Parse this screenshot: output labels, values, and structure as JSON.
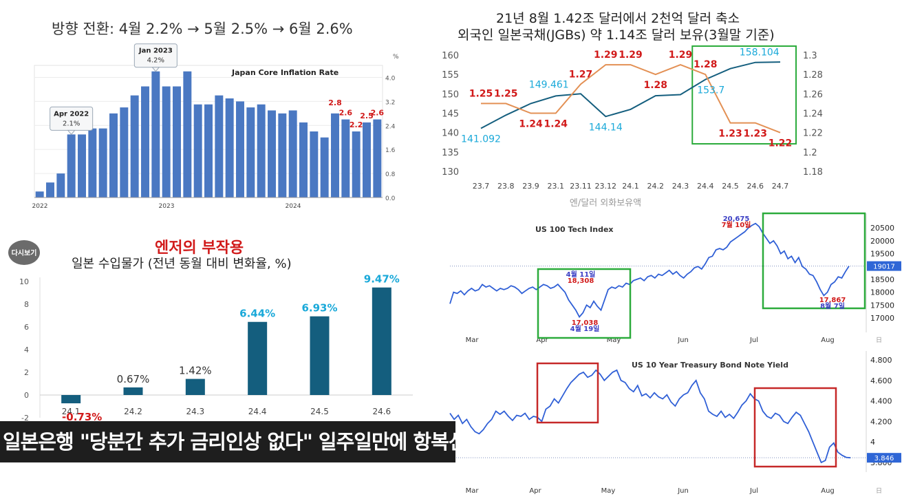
{
  "banner": {
    "text": "일본은행 \"당분간 추가 금리인상 없다\" 일주일만에 항복선언"
  },
  "logo": {
    "text": "다시보기"
  },
  "colors": {
    "bar_blue": "#4a78c2",
    "teal": "#145e7e",
    "cyan": "#1aa9d9",
    "red": "#d11a1a",
    "orange": "#e39054",
    "line_blue": "#2f5fd6",
    "green_box": "#2bab3b",
    "red_box": "#c62828"
  },
  "chart_data": [
    {
      "id": "inflation",
      "type": "bar",
      "header": "방향 전환: 4월 2.2% → 5월 2.5% → 6월 2.6%",
      "title": "Japan Core Inflation Rate",
      "unit": "%",
      "x_ticks": [
        "2022",
        "2023",
        "2024"
      ],
      "y_ticks": [
        "0.0",
        "0.8",
        "1.6",
        "2.4",
        "3.2",
        "4.0"
      ],
      "ylim": [
        0,
        4.4
      ],
      "values": [
        0.2,
        0.5,
        0.8,
        2.1,
        2.1,
        2.3,
        2.3,
        2.8,
        3.0,
        3.4,
        3.7,
        4.2,
        3.7,
        3.7,
        4.2,
        3.1,
        3.1,
        3.4,
        3.3,
        3.2,
        3.0,
        3.1,
        2.9,
        2.8,
        2.9,
        2.5,
        2.2,
        2.0,
        2.8,
        2.6,
        2.2,
        2.5,
        2.6
      ],
      "value_labels": [
        {
          "index": 28,
          "text": "2.8"
        },
        {
          "index": 29,
          "text": "2.6"
        },
        {
          "index": 30,
          "text": "2.2"
        },
        {
          "index": 31,
          "text": "2.5"
        },
        {
          "index": 32,
          "text": "2.6"
        }
      ],
      "callouts": [
        {
          "index": 3,
          "title": "Apr 2022",
          "value": "2.1%"
        },
        {
          "index": 11,
          "title": "Jan 2023",
          "value": "4.2%"
        }
      ]
    },
    {
      "id": "jgb",
      "type": "line",
      "title_lines": [
        "21년 8월 1.42조 달러에서 2천억 달러 축소",
        "외국인 일본국채(JGBs) 약 1.14조 달러 보유(3월말 기준)"
      ],
      "categories": [
        "23.7",
        "23.8",
        "23.9",
        "23.1",
        "23.11",
        "23.12",
        "24.1",
        "24.2",
        "24.3",
        "24.4",
        "24.5",
        "24.6",
        "24.7"
      ],
      "y_ticks_left": [
        "130",
        "135",
        "140",
        "145",
        "150",
        "155",
        "160"
      ],
      "ylim_left": [
        130,
        160
      ],
      "y_ticks_right": [
        "1.18",
        "1.2",
        "1.22",
        "1.24",
        "1.26",
        "1.28",
        "1.3"
      ],
      "ylim_right": [
        1.18,
        1.3
      ],
      "legend_text": "엔/달러  외화보유액",
      "series": [
        {
          "axis": "left",
          "color": "#145e7e",
          "values": [
            141.092,
            144.5,
            147.5,
            149.461,
            150.0,
            144.14,
            146.0,
            149.5,
            149.8,
            153.7,
            156.5,
            158.104,
            158.2
          ]
        },
        {
          "axis": "right",
          "color": "#e39054",
          "values": [
            1.25,
            1.25,
            1.24,
            1.24,
            1.27,
            1.29,
            1.29,
            1.28,
            1.29,
            1.28,
            1.23,
            1.23,
            1.22
          ]
        }
      ],
      "cyan_labels": [
        {
          "index": 0,
          "text": "141.092"
        },
        {
          "index": 3,
          "text": "149.461"
        },
        {
          "index": 5,
          "text": "144.14"
        },
        {
          "index": 9,
          "text": "153.7"
        },
        {
          "index": 11,
          "text": "158.104"
        }
      ],
      "red_labels": [
        {
          "index": 0,
          "text": "1.25"
        },
        {
          "index": 1,
          "text": "1.25"
        },
        {
          "index": 2,
          "text": "1.24"
        },
        {
          "index": 3,
          "text": "1.24"
        },
        {
          "index": 4,
          "text": "1.27"
        },
        {
          "index": 5,
          "text": "1.29"
        },
        {
          "index": 6,
          "text": "1.29"
        },
        {
          "index": 7,
          "text": "1.28"
        },
        {
          "index": 8,
          "text": "1.29"
        },
        {
          "index": 9,
          "text": "1.28"
        },
        {
          "index": 10,
          "text": "1.23"
        },
        {
          "index": 11,
          "text": "1.23"
        },
        {
          "index": 12,
          "text": "1.22"
        }
      ],
      "highlight": {
        "from_index": 9,
        "to_index": 12
      }
    },
    {
      "id": "import",
      "type": "bar",
      "header_red": "엔저의 부작용",
      "header": "일본 수입물가 (전년 동월 대비 변화율, %)",
      "categories": [
        "24.1",
        "24.2",
        "24.3",
        "24.4",
        "24.5",
        "24.6"
      ],
      "values": [
        -0.73,
        0.67,
        1.42,
        6.44,
        6.93,
        9.47
      ],
      "labels": [
        "-0.73%",
        "0.67%",
        "1.42%",
        "6.44%",
        "6.93%",
        "9.47%"
      ],
      "label_colors": [
        "#d11a1a",
        "#333333",
        "#333333",
        "#1aa9d9",
        "#1aa9d9",
        "#1aa9d9"
      ],
      "y_ticks": [
        "-2",
        "0",
        "2",
        "4",
        "6",
        "8",
        "10"
      ],
      "ylim": [
        -2,
        10
      ]
    },
    {
      "id": "nasdaq",
      "type": "line",
      "title": "US 100 Tech Index",
      "x_ticks": [
        "Mar",
        "Apr",
        "May",
        "Jun",
        "Jul",
        "Aug"
      ],
      "y_ticks": [
        "17000",
        "17500",
        "18000",
        "18500",
        "19000",
        "19500",
        "20000",
        "20500"
      ],
      "ylim": [
        16650,
        20800
      ],
      "last_value": "19017",
      "corner_label": "日",
      "annotations": [
        {
          "lines": [
            "4월 11일",
            "18,308"
          ],
          "value": 18308
        },
        {
          "lines": [
            "17,038",
            "4월 19일"
          ],
          "value": 17038
        },
        {
          "lines": [
            "20,675",
            "7월 10일"
          ],
          "value": 20675
        },
        {
          "lines": [
            "17,867",
            "8월 7일"
          ],
          "value": 17867
        }
      ],
      "values": [
        17550,
        18000,
        17950,
        18050,
        17900,
        18050,
        18150,
        18050,
        18100,
        18300,
        18200,
        18250,
        18150,
        18050,
        18150,
        18100,
        18150,
        18250,
        18200,
        18100,
        17950,
        18050,
        18150,
        18200,
        18100,
        18200,
        18300,
        18250,
        18150,
        18200,
        18308,
        18150,
        18000,
        17700,
        17500,
        17300,
        17038,
        17200,
        17500,
        17400,
        17650,
        17450,
        17300,
        17700,
        18100,
        18200,
        18150,
        18250,
        18200,
        18350,
        18300,
        18450,
        18500,
        18550,
        18450,
        18600,
        18650,
        18550,
        18700,
        18650,
        18750,
        18850,
        18700,
        18800,
        18650,
        18550,
        18700,
        18800,
        18950,
        19000,
        18900,
        19100,
        19350,
        19400,
        19650,
        19700,
        19650,
        19750,
        19950,
        20050,
        20150,
        20250,
        20350,
        20500,
        20600,
        20675,
        20550,
        20300,
        20100,
        19900,
        20000,
        19800,
        19500,
        19600,
        19300,
        19400,
        19150,
        19350,
        19000,
        18900,
        18700,
        18650,
        18400,
        18100,
        17867,
        18000,
        18300,
        18400,
        18600,
        18550,
        18800,
        19017
      ]
    },
    {
      "id": "bond",
      "type": "line",
      "title": "US 10 Year Treasury Bond Note Yield",
      "x_ticks": [
        "Mar",
        "Apr",
        "May",
        "Jun",
        "Jul",
        "Aug"
      ],
      "y_ticks": [
        "3.800",
        "4",
        "4.200",
        "4.400",
        "4.600",
        "4.800"
      ],
      "ylim": [
        3.76,
        4.82
      ],
      "last_value": "3.846",
      "corner_label": "日",
      "values": [
        4.28,
        4.22,
        4.26,
        4.18,
        4.22,
        4.15,
        4.1,
        4.08,
        4.12,
        4.18,
        4.22,
        4.3,
        4.27,
        4.3,
        4.25,
        4.21,
        4.26,
        4.25,
        4.28,
        4.22,
        4.25,
        4.24,
        4.2,
        4.32,
        4.35,
        4.42,
        4.38,
        4.45,
        4.52,
        4.58,
        4.62,
        4.66,
        4.68,
        4.63,
        4.65,
        4.7,
        4.66,
        4.6,
        4.64,
        4.68,
        4.7,
        4.6,
        4.58,
        4.52,
        4.49,
        4.55,
        4.45,
        4.47,
        4.43,
        4.48,
        4.44,
        4.42,
        4.46,
        4.39,
        4.35,
        4.42,
        4.46,
        4.48,
        4.55,
        4.6,
        4.48,
        4.42,
        4.3,
        4.27,
        4.25,
        4.3,
        4.24,
        4.27,
        4.23,
        4.29,
        4.36,
        4.4,
        4.47,
        4.42,
        4.4,
        4.3,
        4.25,
        4.23,
        4.28,
        4.26,
        4.2,
        4.18,
        4.24,
        4.29,
        4.26,
        4.18,
        4.1,
        4.0,
        3.9,
        3.8,
        3.82,
        3.95,
        3.99,
        3.9,
        3.87,
        3.85,
        3.846
      ]
    }
  ]
}
